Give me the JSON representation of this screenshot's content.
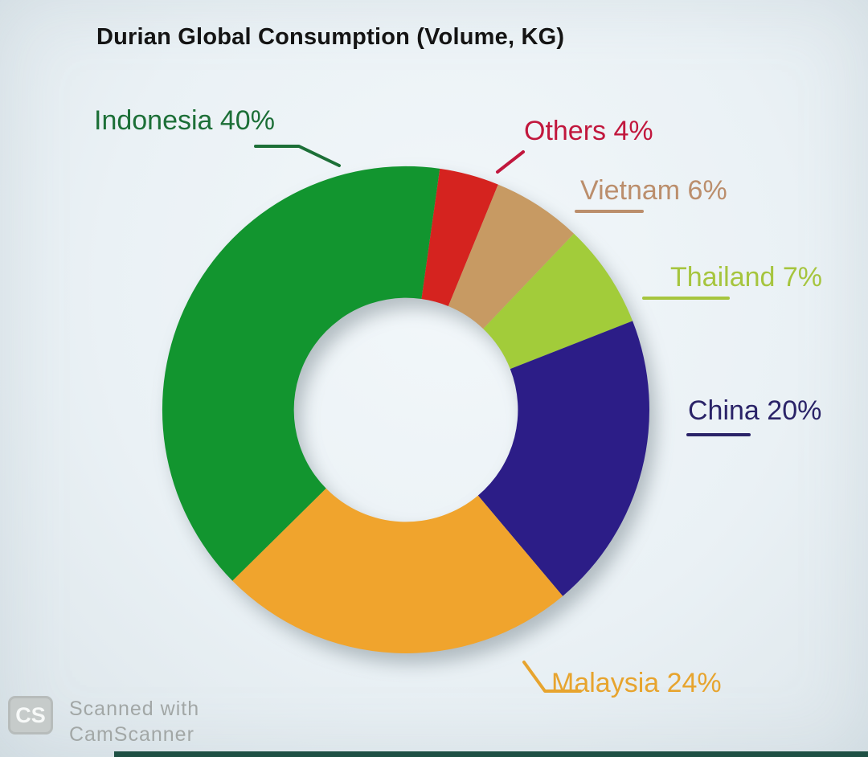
{
  "title": "Durian Global Consumption (Volume, KG)",
  "chart_data": {
    "type": "pie",
    "variant": "donut",
    "title": "Durian Global Consumption (Volume, KG)",
    "value_unit": "percent",
    "direction": "clockwise",
    "start_angle_deg": 8,
    "inner_radius_ratio": 0.46,
    "legend_position": "around",
    "categories": [
      "Indonesia",
      "Malaysia",
      "China",
      "Thailand",
      "Vietnam",
      "Others"
    ],
    "values": [
      40,
      24,
      20,
      7,
      6,
      4
    ],
    "slices": [
      {
        "label": "Others",
        "value": 4,
        "label_text": "Others 4%",
        "color": "#d5231f",
        "label_color": "#c1173d"
      },
      {
        "label": "Vietnam",
        "value": 6,
        "label_text": "Vietnam 6%",
        "color": "#c79a63",
        "label_color": "#bb8e6c"
      },
      {
        "label": "Thailand",
        "value": 7,
        "label_text": "Thailand 7%",
        "color": "#a2cc3a",
        "label_color": "#a6c53e"
      },
      {
        "label": "China",
        "value": 20,
        "label_text": "China 20%",
        "color": "#2c1d87",
        "label_color": "#2a2368"
      },
      {
        "label": "Malaysia",
        "value": 24,
        "label_text": "Malaysia 24%",
        "color": "#f0a42d",
        "label_color": "#e7a42e"
      },
      {
        "label": "Indonesia",
        "value": 40,
        "label_text": "Indonesia 40%",
        "color": "#12952f",
        "label_color": "#1c6f37"
      }
    ]
  },
  "watermark": {
    "logo_text": "CS",
    "line1": "Scanned with",
    "line2": "CamScanner"
  }
}
